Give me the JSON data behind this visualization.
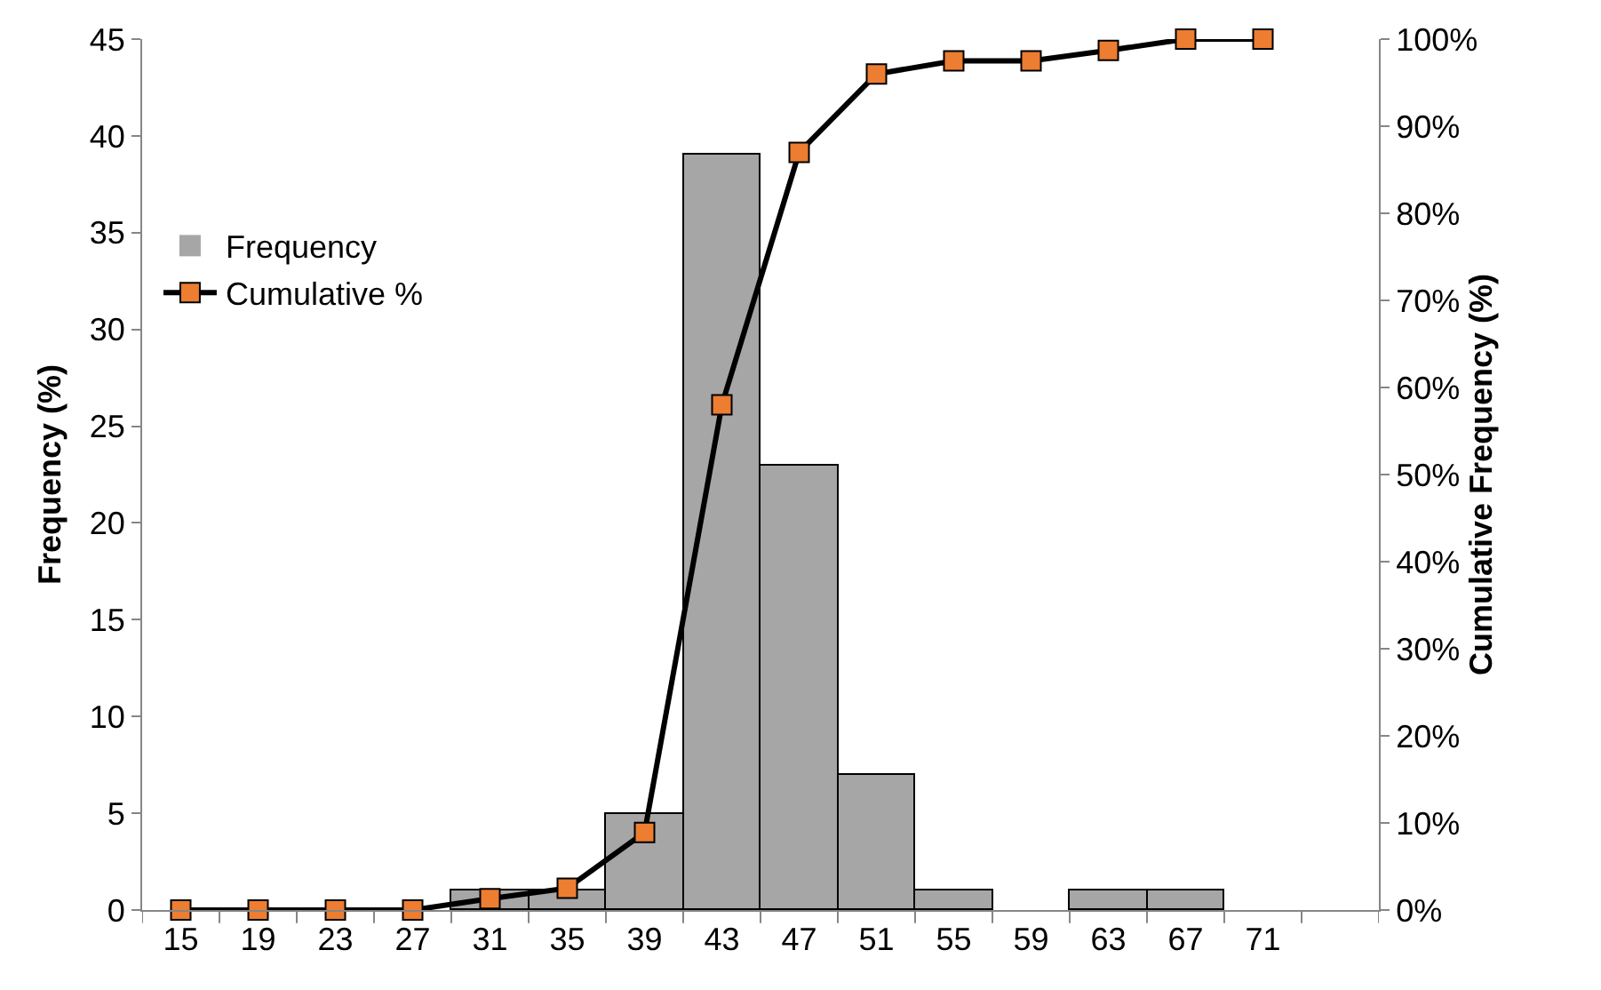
{
  "chart_data": {
    "type": "bar",
    "ylabel": "Frequency (%)",
    "y2label": "Cumulative Frequency (%)",
    "categories": [
      "15",
      "19",
      "23",
      "27",
      "31",
      "35",
      "39",
      "43",
      "47",
      "51",
      "55",
      "59",
      "63",
      "67",
      "71",
      null
    ],
    "series": [
      {
        "name": "Frequency",
        "color": "#a6a6a6",
        "values": [
          0,
          0,
          0,
          0,
          1,
          1,
          5,
          39,
          23,
          7,
          1,
          0,
          1,
          1,
          0,
          null
        ]
      },
      {
        "name": "Cumulative %",
        "type": "line",
        "axis": "y2",
        "color": "#ed7d31",
        "values": [
          0,
          0,
          0,
          0,
          1.3,
          2.5,
          8.9,
          58,
          87,
          96,
          97.5,
          97.5,
          98.7,
          100,
          100,
          null
        ]
      }
    ],
    "ylim": [
      0,
      45
    ],
    "yticks": [
      0,
      5,
      10,
      15,
      20,
      25,
      30,
      35,
      40,
      45
    ],
    "y2lim": [
      0,
      100
    ],
    "y2ticks": [
      {
        "value": 0,
        "label": "0%"
      },
      {
        "value": 10,
        "label": "10%"
      },
      {
        "value": 20,
        "label": "20%"
      },
      {
        "value": 30,
        "label": "30%"
      },
      {
        "value": 40,
        "label": "40%"
      },
      {
        "value": 50,
        "label": "50%"
      },
      {
        "value": 60,
        "label": "60%"
      },
      {
        "value": 70,
        "label": "70%"
      },
      {
        "value": 80,
        "label": "80%"
      },
      {
        "value": 90,
        "label": "90%"
      },
      {
        "value": 100,
        "label": "100%"
      }
    ],
    "grid": false,
    "legend": "left",
    "marker": "square",
    "line_style": "solid"
  }
}
